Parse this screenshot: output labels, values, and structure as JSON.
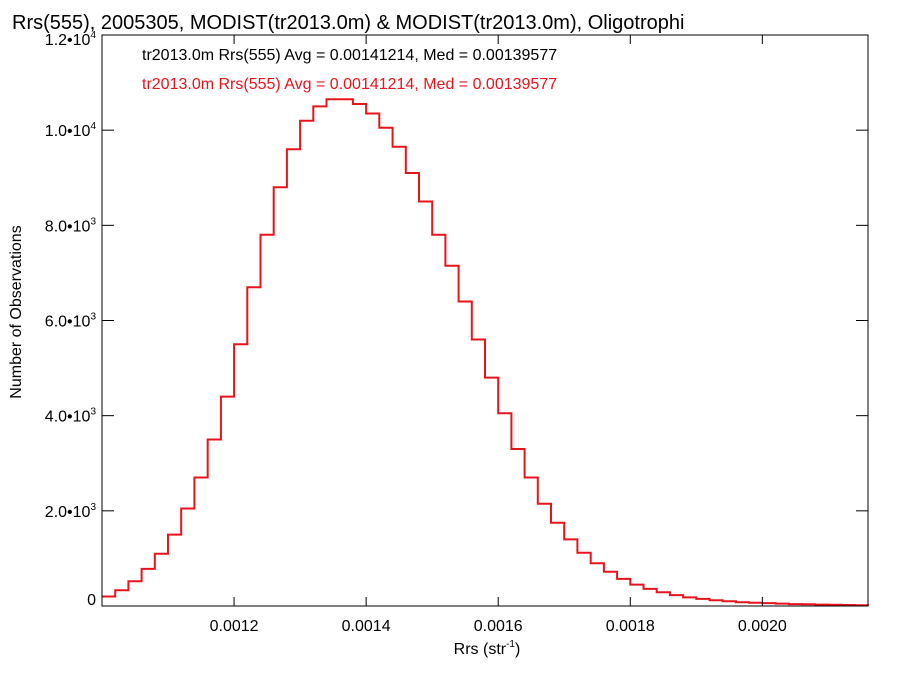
{
  "chart_data": {
    "type": "line",
    "title": "Rrs(555), 2005305, MODIST(tr2013.0m) & MODIST(tr2013.0m), Oligotrophi",
    "xlabel": "Rrs (str",
    "xlabel_sup": "-1",
    "xlabel_end": ")",
    "ylabel": "Number of Observations",
    "xlim": [
      0.001,
      0.00216
    ],
    "ylim": [
      0,
      12000
    ],
    "x_ticks": [
      {
        "value": 0.0012,
        "label": "0.0012"
      },
      {
        "value": 0.0014,
        "label": "0.0014"
      },
      {
        "value": 0.0016,
        "label": "0.0016"
      },
      {
        "value": 0.0018,
        "label": "0.0018"
      },
      {
        "value": 0.002,
        "label": "0.0020"
      }
    ],
    "y_ticks": [
      {
        "value": 0,
        "label": "0",
        "sup": ""
      },
      {
        "value": 2000,
        "label": "2.0•10",
        "sup": "3"
      },
      {
        "value": 4000,
        "label": "4.0•10",
        "sup": "3"
      },
      {
        "value": 6000,
        "label": "6.0•10",
        "sup": "3"
      },
      {
        "value": 8000,
        "label": "8.0•10",
        "sup": "3"
      },
      {
        "value": 10000,
        "label": "1.0•10",
        "sup": "4"
      },
      {
        "value": 12000,
        "label": "1.2•10",
        "sup": "4"
      }
    ],
    "annotations": [
      {
        "text": "tr2013.0m Rrs(555) Avg = 0.00141214, Med = 0.00139577",
        "color": "#000000"
      },
      {
        "text": "tr2013.0m Rrs(555) Avg = 0.00141214, Med = 0.00139577",
        "color": "#e8141c"
      }
    ],
    "series": [
      {
        "color": "#e8141c",
        "step": true,
        "x": [
          0.001,
          0.00102,
          0.00104,
          0.00106,
          0.00108,
          0.0011,
          0.00112,
          0.00114,
          0.00116,
          0.00118,
          0.0012,
          0.00122,
          0.00124,
          0.00126,
          0.00128,
          0.0013,
          0.00132,
          0.00134,
          0.00136,
          0.00138,
          0.0014,
          0.00142,
          0.00144,
          0.00146,
          0.00148,
          0.0015,
          0.00152,
          0.00154,
          0.00156,
          0.00158,
          0.0016,
          0.00162,
          0.00164,
          0.00166,
          0.00168,
          0.0017,
          0.00172,
          0.00174,
          0.00176,
          0.00178,
          0.0018,
          0.00182,
          0.00184,
          0.00186,
          0.00188,
          0.0019,
          0.00192,
          0.00194,
          0.00196,
          0.00198,
          0.002,
          0.00202,
          0.00204,
          0.00206,
          0.00208,
          0.0021,
          0.00212,
          0.00214,
          0.00216
        ],
        "y": [
          200,
          330,
          520,
          780,
          1100,
          1500,
          2050,
          2700,
          3500,
          4400,
          5500,
          6700,
          7800,
          8800,
          9600,
          10200,
          10500,
          10650,
          10650,
          10550,
          10350,
          10050,
          9650,
          9100,
          8500,
          7800,
          7150,
          6400,
          5600,
          4800,
          4050,
          3300,
          2700,
          2150,
          1750,
          1400,
          1120,
          900,
          720,
          570,
          450,
          360,
          290,
          230,
          180,
          150,
          120,
          100,
          80,
          70,
          60,
          50,
          40,
          35,
          30,
          25,
          20,
          15,
          10
        ]
      }
    ]
  }
}
